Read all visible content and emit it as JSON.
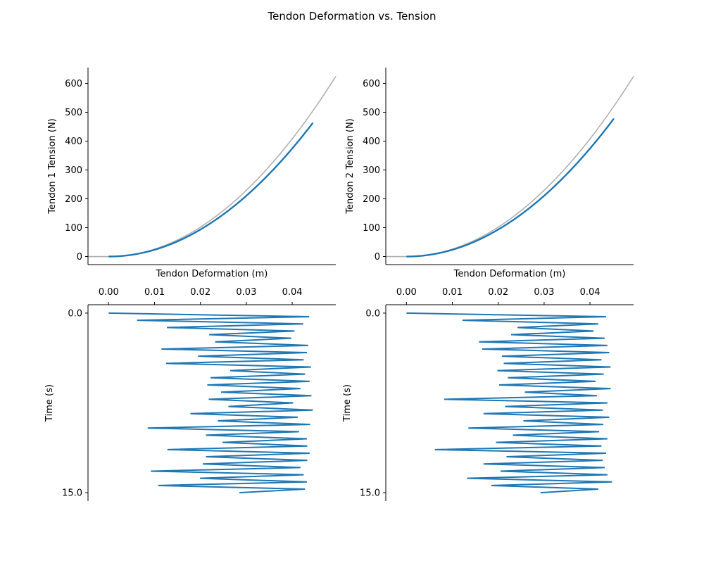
{
  "figure": {
    "title": "Tendon Deformation vs. Tension"
  },
  "chart_data": [
    {
      "type": "line",
      "panel": "top-left",
      "xlabel": "Tendon Deformation (m)",
      "ylabel": "Tendon 1 Tension (N)",
      "xlim": [
        -0.0045,
        0.0495
      ],
      "ylim": [
        -28,
        655
      ],
      "yticks": [
        0,
        100,
        200,
        300,
        400,
        500,
        600
      ],
      "ytick_labels": [
        "0",
        "100",
        "200",
        "300",
        "400",
        "500",
        "600"
      ],
      "reference_curve": {
        "color": "#b0b0b0",
        "x_start": -0.0045,
        "x_end": 0.0495,
        "k": 255000,
        "n": 2
      },
      "data_curve": {
        "color": "#1f77b4",
        "x_start": 0.0,
        "x_end": 0.0445,
        "k": 234000,
        "n": 2
      },
      "spines": [
        "left",
        "bottom"
      ]
    },
    {
      "type": "line",
      "panel": "top-right",
      "xlabel": "Tendon Deformation (m)",
      "ylabel": "Tendon 2 Tension (N)",
      "xlim": [
        -0.0045,
        0.0495
      ],
      "ylim": [
        -28,
        655
      ],
      "yticks": [
        0,
        100,
        200,
        300,
        400,
        500,
        600
      ],
      "ytick_labels": [
        "0",
        "100",
        "200",
        "300",
        "400",
        "500",
        "600"
      ],
      "reference_curve": {
        "color": "#b0b0b0",
        "x_start": -0.0045,
        "x_end": 0.0495,
        "k": 255000,
        "n": 2
      },
      "data_curve": {
        "color": "#1f77b4",
        "x_start": 0.0,
        "x_end": 0.0452,
        "k": 234000,
        "n": 2
      },
      "spines": [
        "left",
        "bottom"
      ]
    },
    {
      "type": "line",
      "panel": "bottom-left",
      "ylabel": "Time (s)",
      "xlim": [
        -0.0045,
        0.0495
      ],
      "ylim": [
        15.7,
        -0.7
      ],
      "xticks": [
        0.0,
        0.01,
        0.02,
        0.03,
        0.04
      ],
      "xtick_labels": [
        "0.00",
        "0.01",
        "0.02",
        "0.03",
        "0.04"
      ],
      "yticks": [
        0.0,
        15.0
      ],
      "ytick_labels": [
        "0.0",
        "15.0"
      ],
      "xaxis_position": "top",
      "spines": [
        "left",
        "top"
      ],
      "series_color": "#1f77b4",
      "series": {
        "t": [
          0.0,
          0.3,
          0.6,
          0.9,
          1.2,
          1.5,
          1.8,
          2.1,
          2.4,
          2.7,
          3.0,
          3.3,
          3.6,
          3.9,
          4.2,
          4.5,
          4.8,
          5.1,
          5.4,
          5.7,
          6.0,
          6.3,
          6.6,
          6.9,
          7.2,
          7.5,
          7.8,
          8.1,
          8.4,
          8.7,
          9.0,
          9.3,
          9.6,
          9.9,
          10.2,
          10.5,
          10.8,
          11.1,
          11.4,
          11.7,
          12.0,
          12.3,
          12.6,
          12.9,
          13.2,
          13.5,
          13.8,
          14.1,
          14.4,
          14.7,
          15.0
        ],
        "x": [
          0.0,
          0.0437,
          0.0062,
          0.0424,
          0.0127,
          0.0405,
          0.0219,
          0.0398,
          0.0232,
          0.0435,
          0.0115,
          0.0432,
          0.0195,
          0.0425,
          0.0125,
          0.0441,
          0.0265,
          0.0428,
          0.0222,
          0.0438,
          0.0215,
          0.0418,
          0.0245,
          0.0442,
          0.0218,
          0.0402,
          0.0261,
          0.0445,
          0.0178,
          0.0412,
          0.0238,
          0.0439,
          0.0085,
          0.0415,
          0.0212,
          0.0432,
          0.0248,
          0.0433,
          0.0128,
          0.0438,
          0.0212,
          0.0433,
          0.0205,
          0.0418,
          0.0092,
          0.0425,
          0.0199,
          0.0432,
          0.0108,
          0.0428,
          0.0285
        ]
      }
    },
    {
      "type": "line",
      "panel": "bottom-right",
      "ylabel": "Time (s)",
      "xlim": [
        -0.0045,
        0.0495
      ],
      "ylim": [
        15.7,
        -0.7
      ],
      "xticks": [
        0.0,
        0.01,
        0.02,
        0.03,
        0.04
      ],
      "xtick_labels": [
        "0.00",
        "0.01",
        "0.02",
        "0.03",
        "0.04"
      ],
      "yticks": [
        0.0,
        15.0
      ],
      "ytick_labels": [
        "0.0",
        "15.0"
      ],
      "xaxis_position": "top",
      "spines": [
        "left",
        "top"
      ],
      "series_color": "#1f77b4",
      "series": {
        "t": [
          0.0,
          0.3,
          0.6,
          0.9,
          1.2,
          1.5,
          1.8,
          2.1,
          2.4,
          2.7,
          3.0,
          3.3,
          3.6,
          3.9,
          4.2,
          4.5,
          4.8,
          5.1,
          5.4,
          5.7,
          6.0,
          6.3,
          6.6,
          6.9,
          7.2,
          7.5,
          7.8,
          8.1,
          8.4,
          8.7,
          9.0,
          9.3,
          9.6,
          9.9,
          10.2,
          10.5,
          10.8,
          11.1,
          11.4,
          11.7,
          12.0,
          12.3,
          12.6,
          12.9,
          13.2,
          13.5,
          13.8,
          14.1,
          14.4,
          14.7,
          15.0
        ],
        "x": [
          0.0,
          0.0435,
          0.0122,
          0.0418,
          0.0242,
          0.0408,
          0.0228,
          0.0432,
          0.0158,
          0.0438,
          0.0165,
          0.0442,
          0.0208,
          0.0425,
          0.0212,
          0.0445,
          0.0198,
          0.043,
          0.0221,
          0.0412,
          0.0202,
          0.0445,
          0.0258,
          0.0415,
          0.0082,
          0.0438,
          0.0215,
          0.0428,
          0.0168,
          0.0442,
          0.0255,
          0.0429,
          0.0135,
          0.042,
          0.0232,
          0.0438,
          0.0195,
          0.0425,
          0.0062,
          0.0435,
          0.0218,
          0.0428,
          0.0168,
          0.0432,
          0.0205,
          0.0438,
          0.0132,
          0.0448,
          0.0185,
          0.0418,
          0.0292
        ]
      }
    }
  ]
}
